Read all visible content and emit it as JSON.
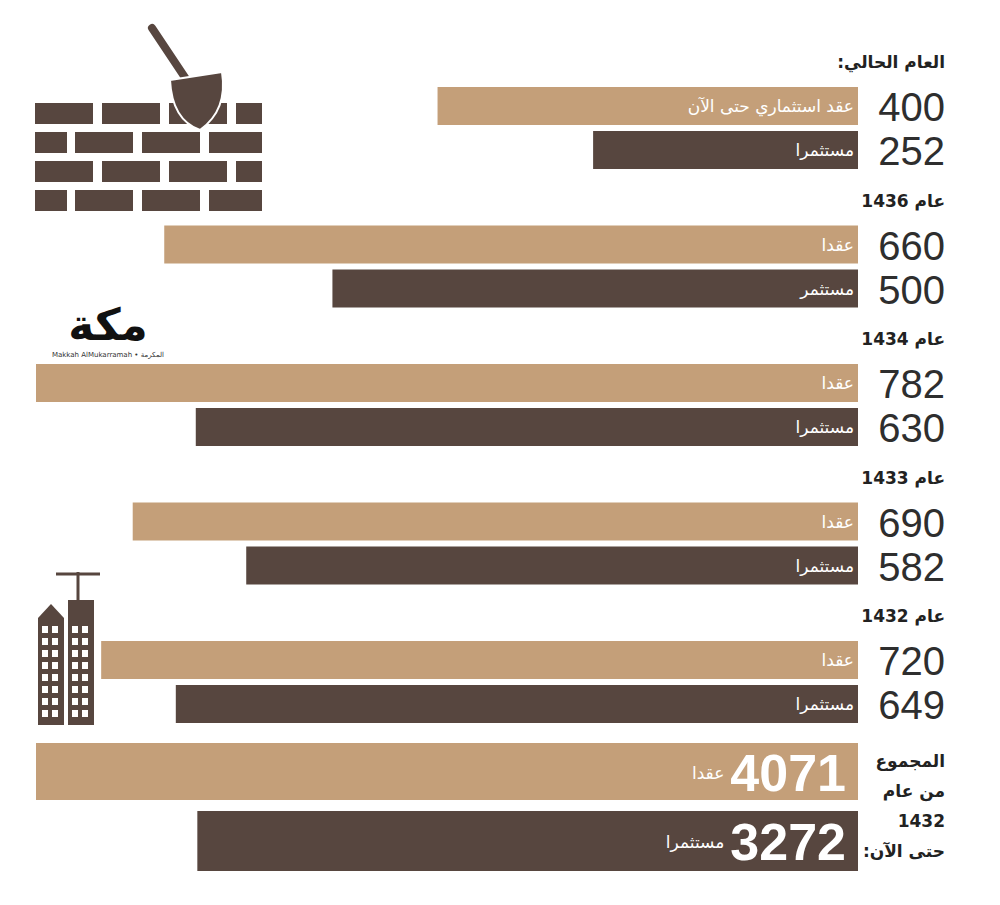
{
  "chart_data": [
    {
      "type": "bar",
      "orientation": "horizontal",
      "data_labels": true,
      "categories": [
        "العام الحالي:",
        "عام 1436",
        "عام 1434",
        "عام 1433",
        "عام 1432"
      ],
      "series": [
        {
          "color": "#c49f79",
          "values": [
            400,
            660,
            782,
            690,
            720
          ],
          "labels": [
            "عقد استثماري حتى الآن",
            "عقدا",
            "عقدا",
            "عقدا",
            "عقدا"
          ]
        },
        {
          "color": "#57463f",
          "values": [
            252,
            500,
            630,
            582,
            649
          ],
          "labels": [
            "مستثمرا",
            "مستثمر",
            "مستثمرا",
            "مستثمرا",
            "مستثمرا"
          ]
        }
      ],
      "annotations": [
        "مكة",
        "Makkah AlMukarramah • المكرمة"
      ]
    },
    {
      "type": "bar",
      "orientation": "horizontal",
      "data_labels": true,
      "title": "المجموع من عام 1432 حتى الآن:",
      "categories": [
        "عقدا",
        "مستثمرا"
      ],
      "values": [
        4071,
        3272
      ],
      "colors": [
        "#c49f79",
        "#57463f"
      ]
    }
  ]
}
